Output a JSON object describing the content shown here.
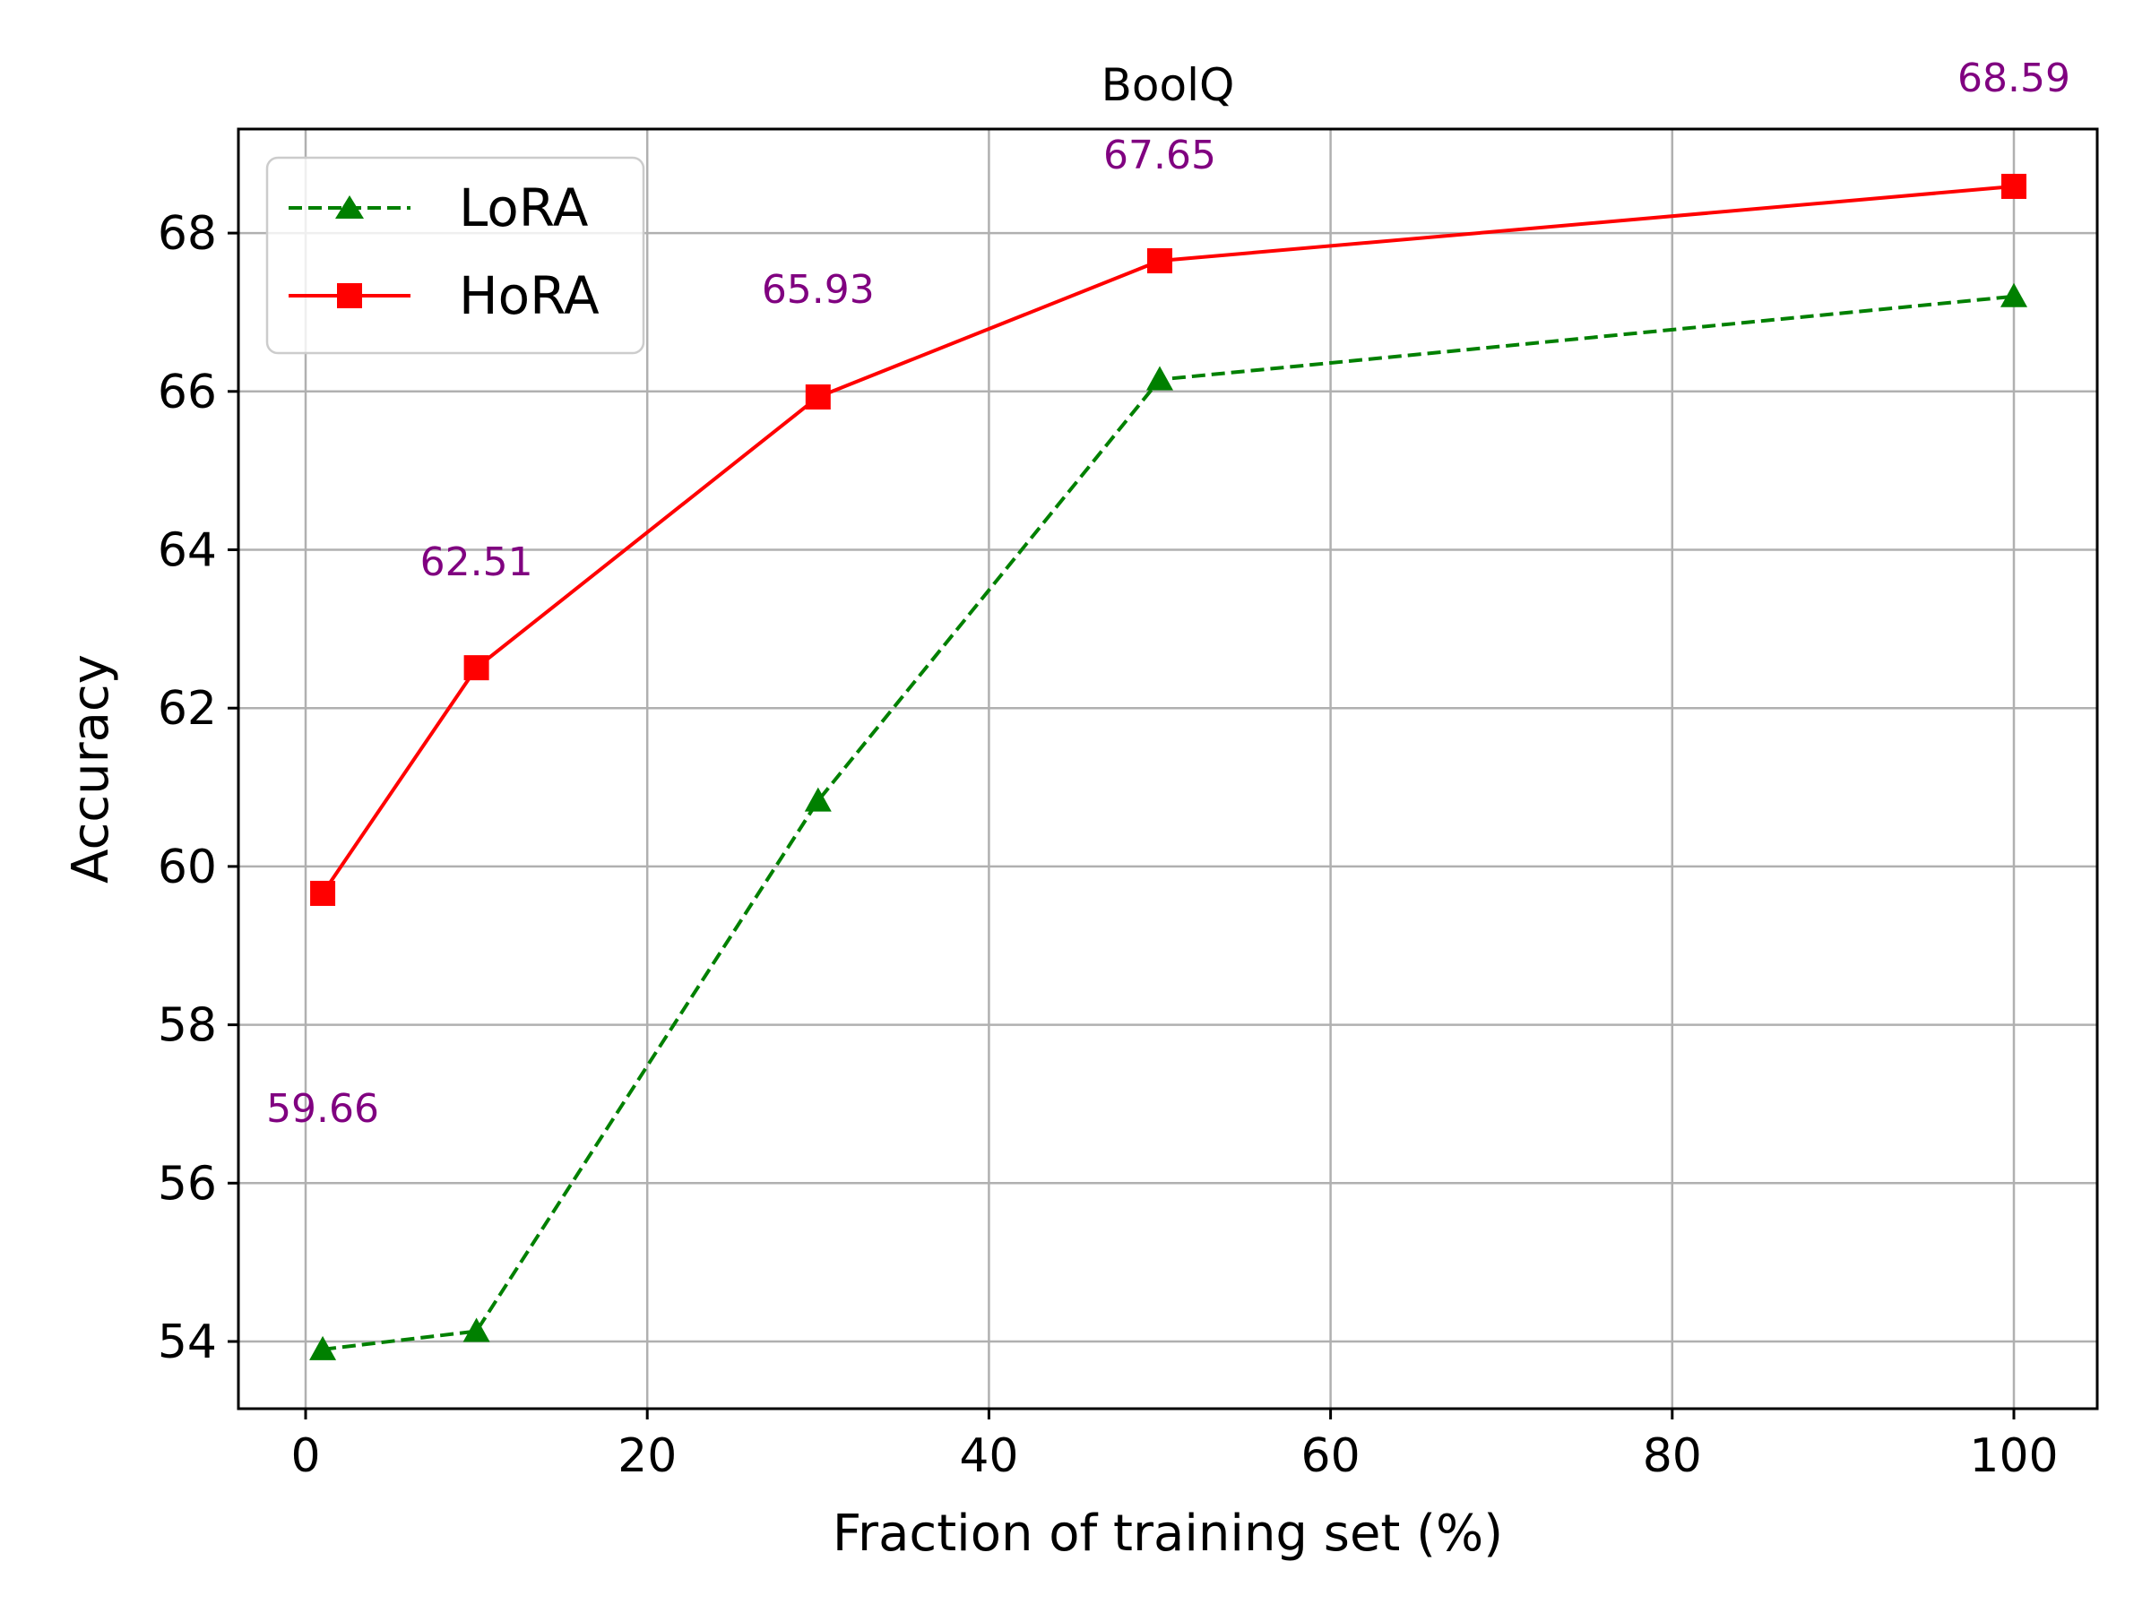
{
  "chart_data": {
    "type": "line",
    "title": "BoolQ",
    "xlabel": "Fraction of training set (%)",
    "ylabel": "Accuracy",
    "x": [
      1,
      10,
      30,
      50,
      100
    ],
    "xticks": [
      "0",
      "20",
      "40",
      "60",
      "80",
      "100"
    ],
    "yticks": [
      "54",
      "56",
      "58",
      "60",
      "62",
      "64",
      "66",
      "68"
    ],
    "grid": true,
    "legend_position": "upper-left",
    "series": [
      {
        "name": "LoRA",
        "values": [
          53.9,
          54.13,
          60.83,
          66.15,
          67.2
        ],
        "color": "#008000",
        "line_style": "dashed",
        "marker": "triangle"
      },
      {
        "name": "HoRA",
        "values": [
          59.66,
          62.51,
          65.93,
          67.65,
          68.59
        ],
        "color": "#ff0000",
        "line_style": "solid",
        "marker": "square"
      }
    ],
    "annotations": [
      "59.66",
      "62.51",
      "65.93",
      "67.65",
      "68.59"
    ],
    "annotation_color": "#800080"
  }
}
